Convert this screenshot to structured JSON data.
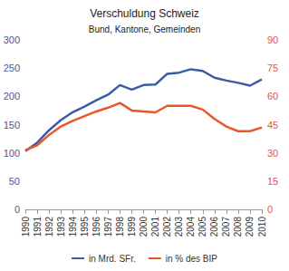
{
  "chart_data": {
    "type": "line",
    "title": "Verschuldung Schweiz",
    "subtitle": "Bund, Kantone, Gemeinden",
    "categories": [
      "1990",
      "1991",
      "1992",
      "1993",
      "1994",
      "1995",
      "1996",
      "1997",
      "1998",
      "1999",
      "2000",
      "2001",
      "2002",
      "2003",
      "2004",
      "2005",
      "2006",
      "2007",
      "2008",
      "2009",
      "2010"
    ],
    "series": [
      {
        "name": "in Mrd. SFr.",
        "color": "#3b5ba5",
        "axis": "y",
        "values": [
          103,
          118,
          140,
          158,
          172,
          182,
          193,
          203,
          220,
          212,
          220,
          221,
          240,
          242,
          248,
          245,
          233,
          228,
          224,
          219,
          230
        ]
      },
      {
        "name": "in % des BIP",
        "color": "#e8572a",
        "axis": "y2",
        "values": [
          31.5,
          34,
          39.5,
          44,
          47,
          49.5,
          52,
          54,
          56.5,
          52.5,
          52,
          51.5,
          55,
          55,
          55,
          53,
          48,
          44,
          41.5,
          41.5,
          43.5
        ]
      }
    ],
    "ylim": [
      0,
      300
    ],
    "yticks": [
      0,
      50,
      100,
      150,
      200,
      250,
      300
    ],
    "y2lim": [
      0,
      90
    ],
    "y2ticks": [
      0,
      15,
      30,
      45,
      60,
      75,
      90
    ],
    "grid": false,
    "legend": "bottom"
  }
}
